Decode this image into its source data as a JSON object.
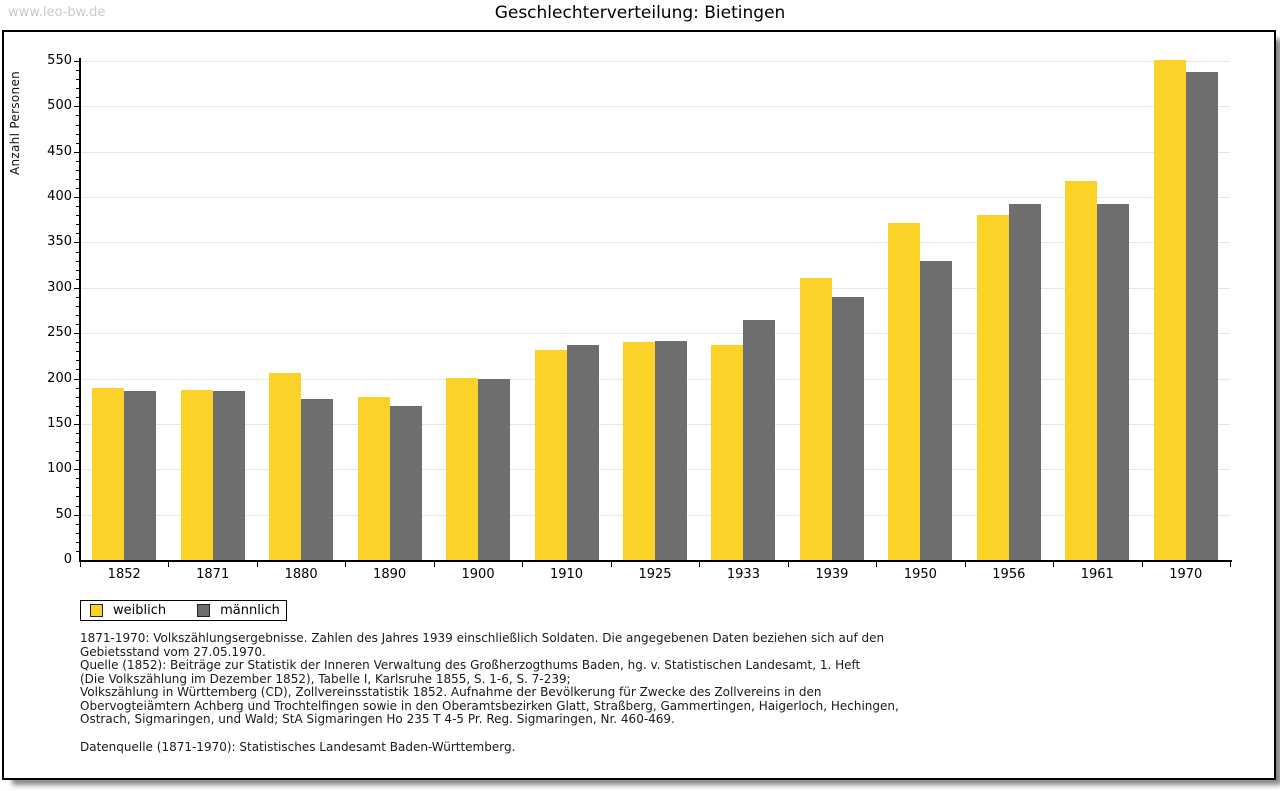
{
  "watermark": "www.leo-bw.de",
  "chart_data": {
    "type": "bar",
    "title": "Geschlechterverteilung: Bietingen",
    "ylabel": "Anzahl Personen",
    "xlabel": "",
    "categories": [
      "1852",
      "1871",
      "1880",
      "1890",
      "1900",
      "1910",
      "1925",
      "1933",
      "1939",
      "1950",
      "1956",
      "1961",
      "1970"
    ],
    "series": [
      {
        "name": "weiblich",
        "color": "#FCD228",
        "values": [
          190,
          187,
          206,
          180,
          201,
          231,
          240,
          237,
          311,
          371,
          380,
          418,
          551
        ]
      },
      {
        "name": "männlich",
        "color": "#6E6E6E",
        "values": [
          186,
          186,
          178,
          170,
          200,
          237,
          241,
          264,
          290,
          330,
          392,
          392,
          538
        ]
      }
    ],
    "ylim": [
      0,
      550
    ],
    "ytick_step": 50,
    "yminor_step": 10,
    "grid": true,
    "legend_position": "below-left"
  },
  "footnotes": {
    "lines": [
      "1871-1970: Volkszählungsergebnisse. Zahlen des Jahres 1939 einschließlich Soldaten. Die angegebenen Daten beziehen sich auf den",
      "Gebietsstand vom 27.05.1970.",
      "Quelle (1852): Beiträge zur Statistik der Inneren Verwaltung des Großherzogthums Baden, hg. v. Statistischen Landesamt, 1. Heft",
      "(Die Volkszählung im Dezember 1852), Tabelle I, Karlsruhe 1855, S. 1-6, S. 7-239;",
      "Volkszählung in Württemberg (CD), Zollvereinsstatistik 1852. Aufnahme der Bevölkerung für Zwecke des Zollvereins in den",
      "Obervogteiämtern Achberg und Trochtelfingen sowie in den Oberamtsbezirken Glatt, Straßberg, Gammertingen, Haigerloch, Hechingen,",
      "Ostrach, Sigmaringen, und Wald; StA Sigmaringen Ho 235 T 4-5 Pr. Reg. Sigmaringen, Nr. 460-469."
    ],
    "datasource": "Datenquelle (1871-1970): Statistisches Landesamt Baden-Württemberg."
  }
}
